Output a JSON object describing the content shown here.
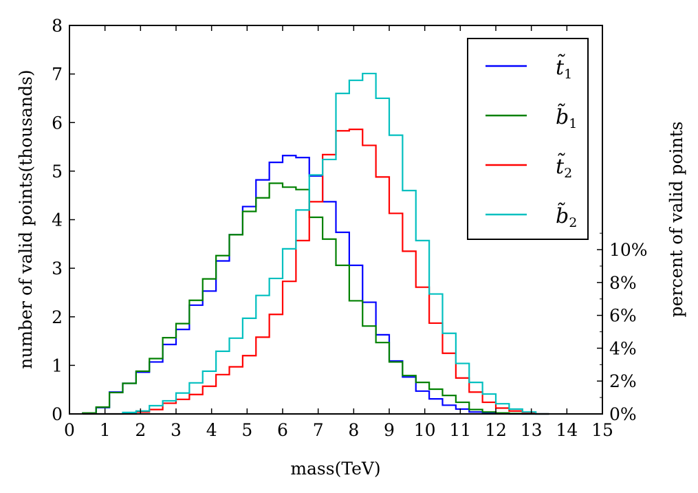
{
  "chart_data": {
    "type": "histogram-step",
    "xlabel": "mass(TeV)",
    "ylabel": "number of valid points(thousands)",
    "y2label": "percent of valid points",
    "xlim": [
      0,
      15
    ],
    "ylim": [
      0,
      8
    ],
    "xticks": [
      0,
      1,
      2,
      3,
      4,
      5,
      6,
      7,
      8,
      9,
      10,
      11,
      12,
      13,
      14,
      15
    ],
    "yticks": [
      0,
      1,
      2,
      3,
      4,
      5,
      6,
      7,
      8
    ],
    "y2ticks": [
      {
        "value": 0,
        "label": "0%"
      },
      {
        "value": 2,
        "label": "2%"
      },
      {
        "value": 4,
        "label": "4%"
      },
      {
        "value": 6,
        "label": "6%"
      },
      {
        "value": 8,
        "label": "8%"
      },
      {
        "value": 10,
        "label": "10%"
      }
    ],
    "y2_thousands_per_percent": 0.3383,
    "legend_position": "top-right",
    "bin_edges": [
      0.375,
      0.75,
      1.125,
      1.5,
      1.875,
      2.25,
      2.625,
      3.0,
      3.375,
      3.75,
      4.125,
      4.5,
      4.875,
      5.25,
      5.625,
      6.0,
      6.375,
      6.75,
      7.125,
      7.5,
      7.875,
      8.25,
      8.625,
      9.0,
      9.375,
      9.75,
      10.125,
      10.5,
      10.875,
      11.25,
      11.625,
      12.0,
      12.375,
      12.75,
      13.125,
      13.5
    ],
    "series": [
      {
        "name": "t̃1",
        "legend_base": "t̃",
        "legend_sub": "1",
        "color": "#0000ff",
        "values": [
          0.02,
          0.13,
          0.45,
          0.63,
          0.86,
          1.07,
          1.43,
          1.74,
          2.24,
          2.53,
          3.15,
          3.69,
          4.27,
          4.82,
          5.18,
          5.32,
          5.28,
          4.9,
          4.37,
          3.74,
          3.06,
          2.3,
          1.63,
          1.09,
          0.76,
          0.47,
          0.31,
          0.18,
          0.1,
          0.04,
          0.02,
          0.01,
          0.0,
          0.0,
          0.0
        ]
      },
      {
        "name": "b̃1",
        "legend_base": "b̃",
        "legend_sub": "1",
        "color": "#008000",
        "values": [
          0.02,
          0.14,
          0.44,
          0.63,
          0.88,
          1.14,
          1.57,
          1.86,
          2.34,
          2.78,
          3.26,
          3.69,
          4.17,
          4.45,
          4.75,
          4.67,
          4.62,
          4.05,
          3.6,
          3.06,
          2.33,
          1.81,
          1.47,
          1.07,
          0.79,
          0.65,
          0.51,
          0.38,
          0.24,
          0.09,
          0.04,
          0.02,
          0.01,
          0.0,
          0.0
        ]
      },
      {
        "name": "t̃2",
        "legend_base": "t̃",
        "legend_sub": "2",
        "color": "#ff0000",
        "values": [
          0.0,
          0.0,
          0.0,
          0.0,
          0.04,
          0.09,
          0.22,
          0.3,
          0.4,
          0.57,
          0.81,
          0.97,
          1.2,
          1.58,
          2.05,
          2.73,
          3.57,
          4.37,
          5.34,
          5.83,
          5.86,
          5.53,
          4.88,
          4.13,
          3.35,
          2.61,
          1.87,
          1.25,
          0.74,
          0.45,
          0.24,
          0.12,
          0.06,
          0.02,
          0.0
        ]
      },
      {
        "name": "b̃2",
        "legend_base": "b̃",
        "legend_sub": "2",
        "color": "#00bfbf",
        "values": [
          0.0,
          0.0,
          0.0,
          0.03,
          0.06,
          0.17,
          0.27,
          0.43,
          0.64,
          0.88,
          1.29,
          1.56,
          1.97,
          2.44,
          2.79,
          3.4,
          4.2,
          4.92,
          5.24,
          6.6,
          6.87,
          7.01,
          6.5,
          5.74,
          4.6,
          3.57,
          2.47,
          1.66,
          1.04,
          0.65,
          0.41,
          0.21,
          0.1,
          0.04,
          0.0
        ]
      }
    ]
  }
}
